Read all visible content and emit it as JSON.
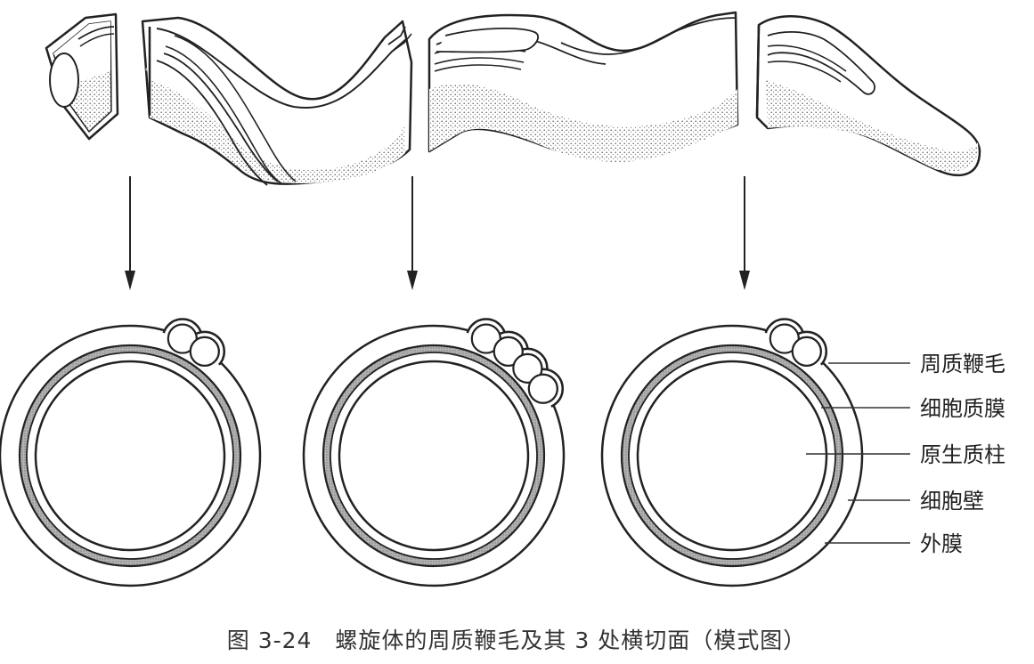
{
  "caption": "图 3-24　螺旋体的周质鞭毛及其 3 处横切面（模式图）",
  "labels": {
    "periplasmic_flagella": "周质鞭毛",
    "cytoplasmic_membrane": "细胞质膜",
    "protoplasmic_cylinder": "原生质柱",
    "cell_wall": "细胞壁",
    "outer_sheath": "外膜"
  },
  "cross_sections": [
    {
      "flagella_count": 2
    },
    {
      "flagella_count": 4
    },
    {
      "flagella_count": 2
    }
  ],
  "colors": {
    "ink": "#222222",
    "stipple": "#8a8a8a",
    "wall": "#a8a8a8"
  }
}
